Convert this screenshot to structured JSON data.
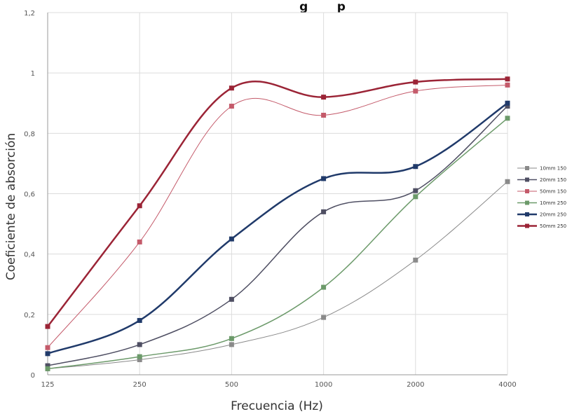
{
  "chart_data": {
    "type": "line",
    "title": "g       p",
    "xlabel": "Frecuencia (Hz)",
    "ylabel": "Coeficiente de absorción",
    "categories": [
      "125",
      "250",
      "500",
      "1000",
      "2000",
      "4000"
    ],
    "ylim": [
      0,
      1.2
    ],
    "yticks": [
      "0",
      "0,2",
      "0,4",
      "0,6",
      "0,8",
      "1",
      "1,2"
    ],
    "grid": true,
    "legend_position": "right",
    "series": [
      {
        "name": "10mm 150",
        "color": "#8a8a8a",
        "width": 1,
        "values": [
          0.02,
          0.05,
          0.1,
          0.19,
          0.38,
          0.64
        ]
      },
      {
        "name": "20mm 150",
        "color": "#4f4f63",
        "width": 1.5,
        "values": [
          0.03,
          0.1,
          0.25,
          0.54,
          0.61,
          0.89
        ]
      },
      {
        "name": "50mm 150",
        "color": "#c45a6a",
        "width": 1,
        "values": [
          0.09,
          0.44,
          0.89,
          0.86,
          0.94,
          0.96
        ]
      },
      {
        "name": "10mm 250",
        "color": "#6c9a6a",
        "width": 1.5,
        "values": [
          0.02,
          0.06,
          0.12,
          0.29,
          0.59,
          0.85
        ]
      },
      {
        "name": "20mm 250",
        "color": "#203a6a",
        "width": 2.5,
        "values": [
          0.07,
          0.18,
          0.45,
          0.65,
          0.69,
          0.9
        ]
      },
      {
        "name": "50mm 250",
        "color": "#9b2436",
        "width": 2.5,
        "values": [
          0.16,
          0.56,
          0.95,
          0.92,
          0.97,
          0.98
        ]
      }
    ]
  }
}
